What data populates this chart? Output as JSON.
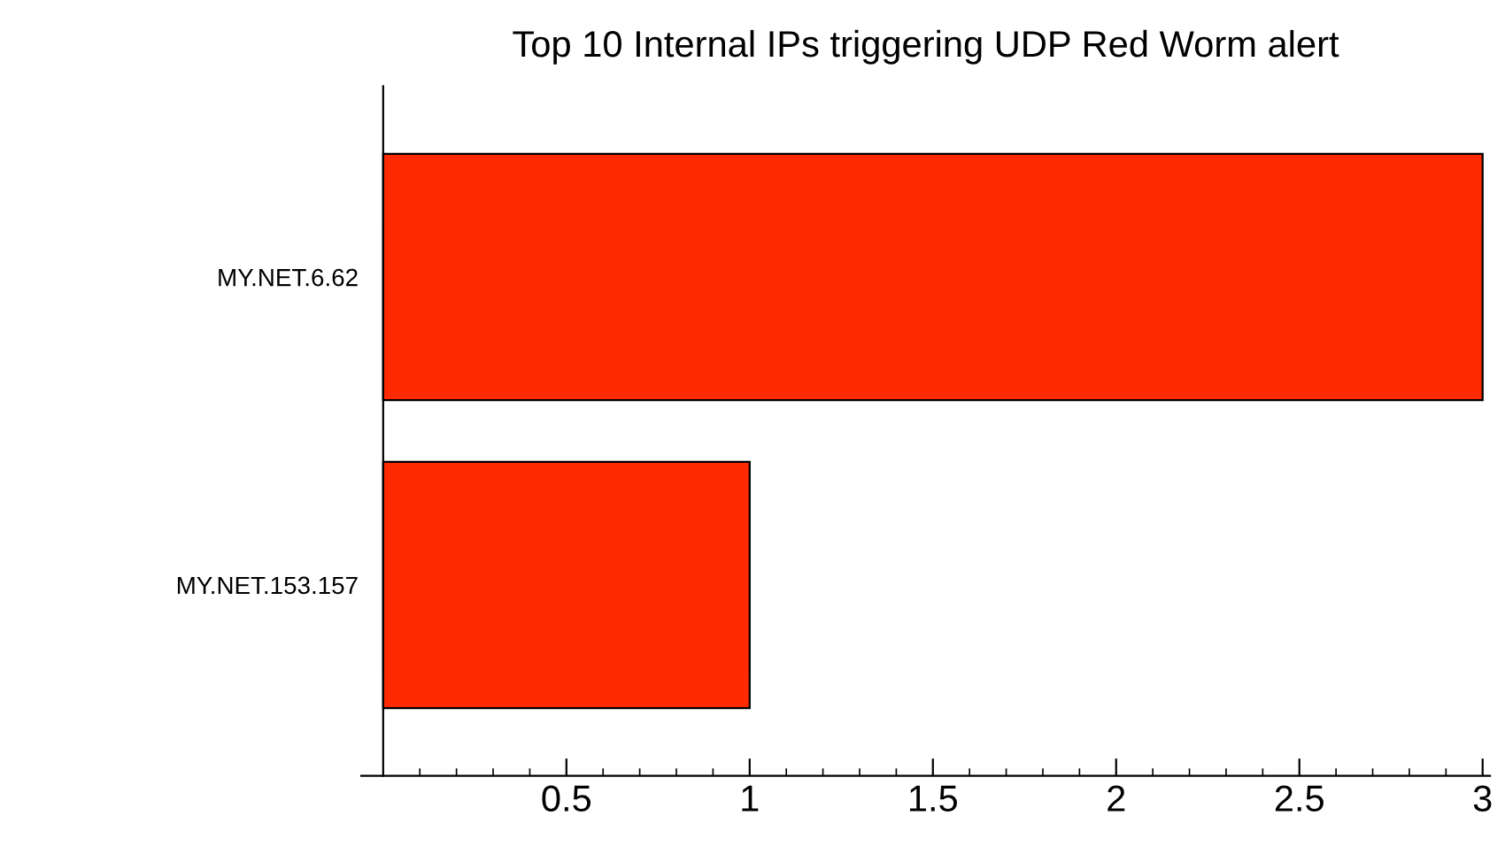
{
  "chart_data": {
    "type": "bar",
    "orientation": "horizontal",
    "title": "Top 10 Internal IPs triggering UDP Red Worm alert",
    "categories": [
      "MY.NET.6.62",
      "MY.NET.153.157"
    ],
    "values": [
      3,
      1
    ],
    "color": "#ff2a00",
    "xlim": [
      -0.06,
      3.02
    ],
    "xticks": [
      {
        "value": 0.1,
        "label": null
      },
      {
        "value": 0.2,
        "label": null
      },
      {
        "value": 0.3,
        "label": null
      },
      {
        "value": 0.4,
        "label": null
      },
      0.5,
      {
        "value": 0.6,
        "label": null
      },
      {
        "value": 0.7,
        "label": null
      },
      {
        "value": 0.8,
        "label": null
      },
      {
        "value": 0.9,
        "label": null
      },
      1,
      {
        "value": 1.1,
        "label": null
      },
      {
        "value": 1.2,
        "label": null
      },
      {
        "value": 1.3,
        "label": null
      },
      {
        "value": 1.4,
        "label": null
      },
      1.5,
      {
        "value": 1.6,
        "label": null
      },
      {
        "value": 1.7,
        "label": null
      },
      {
        "value": 1.8,
        "label": null
      },
      {
        "value": 1.9,
        "label": null
      },
      2,
      {
        "value": 2.1,
        "label": null
      },
      {
        "value": 2.2,
        "label": null
      },
      {
        "value": 2.3,
        "label": null
      },
      {
        "value": 2.4,
        "label": null
      },
      2.5,
      {
        "value": 2.6,
        "label": null
      },
      {
        "value": 2.7,
        "label": null
      },
      {
        "value": 2.8,
        "label": null
      },
      {
        "value": 2.9,
        "label": null
      },
      3
    ],
    "grid": false,
    "legend": false
  }
}
